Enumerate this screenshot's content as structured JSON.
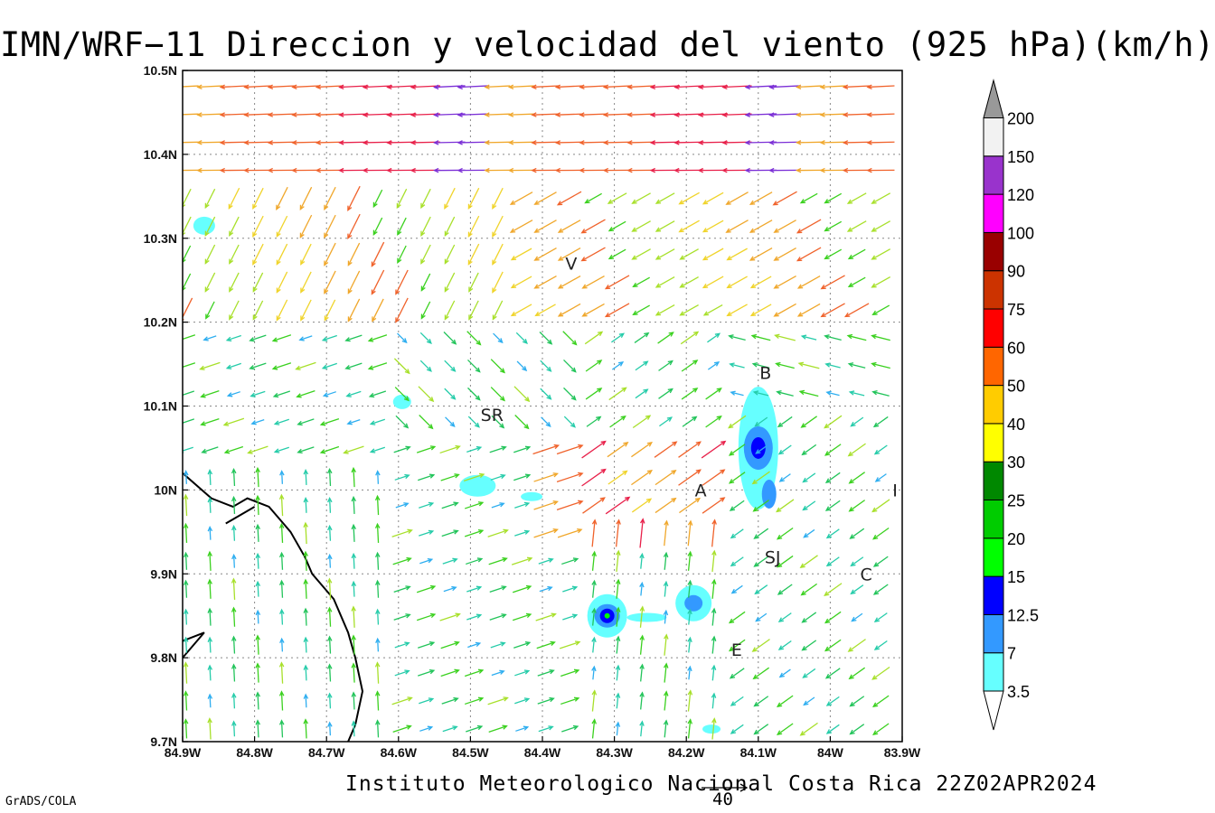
{
  "title": "IMN/WRF−11 Direccion y velocidad del viento (925 hPa)(km/h)",
  "footer": {
    "credit": "Instituto Meteorologico Nacional Costa Rica 22Z02APR2024",
    "software": "GrADS/COLA",
    "reference_vector_label": "40"
  },
  "map": {
    "lon_range": [
      -84.9,
      -83.9
    ],
    "lat_range": [
      9.7,
      10.5
    ],
    "x_tick_values": [
      -84.9,
      -84.8,
      -84.7,
      -84.6,
      -84.5,
      -84.4,
      -84.3,
      -84.2,
      -84.1,
      -84.0,
      -83.9
    ],
    "x_tick_labels": [
      "84.9W",
      "84.8W",
      "84.7W",
      "84.6W",
      "84.5W",
      "84.4W",
      "84.3W",
      "84.2W",
      "84.1W",
      "84W",
      "83.9W"
    ],
    "y_tick_values": [
      9.7,
      9.8,
      9.9,
      10.0,
      10.1,
      10.2,
      10.3,
      10.4,
      10.5
    ],
    "y_tick_labels": [
      "9.7N",
      "9.8N",
      "9.9N",
      "10N",
      "10.1N",
      "10.2N",
      "10.3N",
      "10.4N",
      "10.5N"
    ],
    "grid": true,
    "places": [
      {
        "label": "V",
        "lon": -84.36,
        "lat": 10.27
      },
      {
        "label": "SR",
        "lon": -84.47,
        "lat": 10.09
      },
      {
        "label": "B",
        "lon": -84.09,
        "lat": 10.14
      },
      {
        "label": "A",
        "lon": -84.18,
        "lat": 10.0
      },
      {
        "label": "SJ",
        "lon": -84.08,
        "lat": 9.92
      },
      {
        "label": "C",
        "lon": -83.95,
        "lat": 9.9
      },
      {
        "label": "E",
        "lon": -84.13,
        "lat": 9.81
      },
      {
        "label": "I",
        "lon": -83.91,
        "lat": 10.0
      }
    ],
    "coastline": [
      [
        -84.9,
        10.02
      ],
      [
        -84.86,
        9.99
      ],
      [
        -84.83,
        9.98
      ],
      [
        -84.81,
        9.99
      ],
      [
        -84.78,
        9.98
      ],
      [
        -84.76,
        9.96
      ],
      [
        -84.75,
        9.95
      ],
      [
        -84.73,
        9.92
      ],
      [
        -84.72,
        9.9
      ],
      [
        -84.69,
        9.87
      ],
      [
        -84.67,
        9.83
      ],
      [
        -84.66,
        9.8
      ],
      [
        -84.65,
        9.76
      ],
      [
        -84.66,
        9.72
      ],
      [
        -84.67,
        9.7
      ]
    ],
    "coastline2": [
      [
        -84.8,
        9.98
      ],
      [
        -84.84,
        9.96
      ]
    ],
    "peninsula": [
      [
        -84.9,
        9.82
      ],
      [
        -84.87,
        9.83
      ],
      [
        -84.9,
        9.8
      ]
    ]
  },
  "legend": {
    "colors": [
      "#ffffff",
      "#66ffff",
      "#3399ff",
      "#0000ff",
      "#00ff00",
      "#00cc00",
      "#008800",
      "#ffff00",
      "#ffcc00",
      "#ff6600",
      "#ff0000",
      "#cc3300",
      "#990000",
      "#ff00ff",
      "#9933cc",
      "#f2f2f2",
      "#999999"
    ],
    "labels": [
      "3.5",
      "7",
      "12.5",
      "15",
      "20",
      "25",
      "30",
      "40",
      "50",
      "60",
      "75",
      "90",
      "100",
      "120",
      "150",
      "200"
    ]
  },
  "wind_speed_categories": {
    "colors": [
      "#1f3ffa",
      "#2eaef0",
      "#26ccaa",
      "#22c45a",
      "#3bd11f",
      "#a8e02b",
      "#f0d42b",
      "#f0a72b",
      "#f0622b",
      "#e8204a",
      "#7b2fd6"
    ]
  }
}
